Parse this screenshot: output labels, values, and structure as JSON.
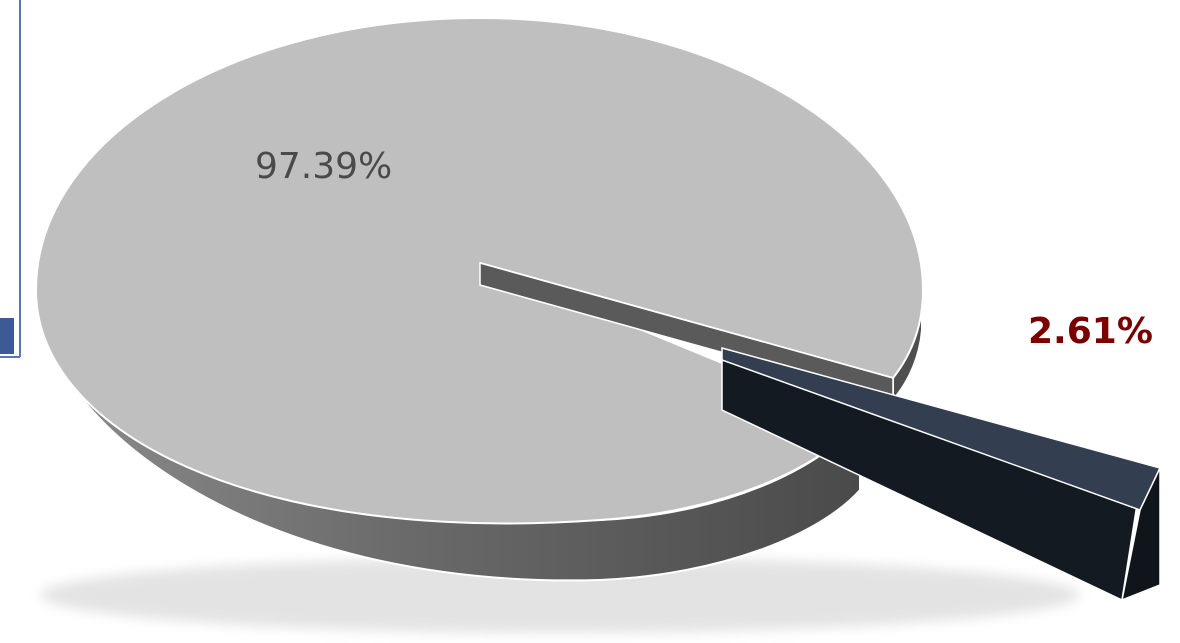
{
  "chart_data": {
    "type": "pie",
    "style": "3d-exploded",
    "slices": [
      {
        "label": "97.39%",
        "value": 97.39,
        "top_color": "#bfbfbf",
        "side_color": "#595959"
      },
      {
        "label": "2.61%",
        "value": 2.61,
        "top_color": "#333f50",
        "side_color": "#141a22",
        "exploded": true
      }
    ]
  }
}
